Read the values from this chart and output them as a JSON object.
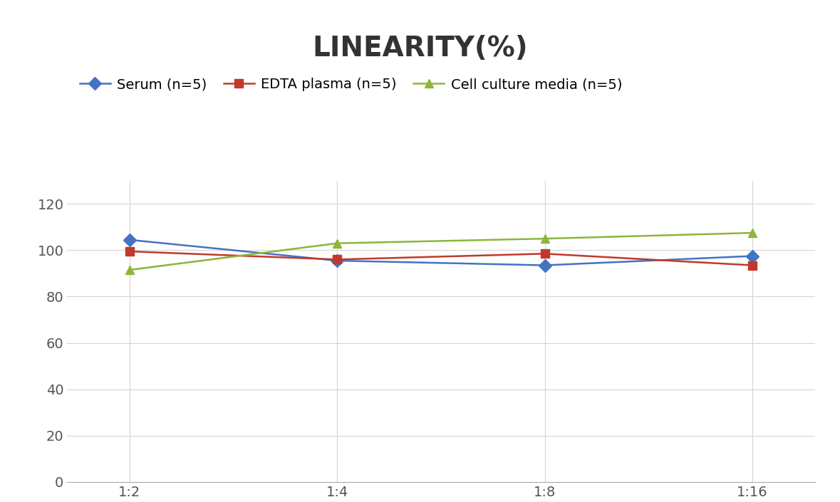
{
  "title": "LINEARITY(%)",
  "x_labels": [
    "1:2",
    "1:4",
    "1:8",
    "1:16"
  ],
  "x_positions": [
    0,
    1,
    2,
    3
  ],
  "series": [
    {
      "name": "Serum (n=5)",
      "values": [
        104.5,
        95.5,
        93.5,
        97.5
      ],
      "color": "#4472C4",
      "marker": "D",
      "marker_color": "#4472C4"
    },
    {
      "name": "EDTA plasma (n=5)",
      "values": [
        99.5,
        96.0,
        98.5,
        93.5
      ],
      "color": "#C0392B",
      "marker": "s",
      "marker_color": "#C0392B"
    },
    {
      "name": "Cell culture media (n=5)",
      "values": [
        91.5,
        103.0,
        105.0,
        107.5
      ],
      "color": "#8DB53B",
      "marker": "^",
      "marker_color": "#8DB53B"
    }
  ],
  "ylim": [
    0,
    130
  ],
  "yticks": [
    0,
    20,
    40,
    60,
    80,
    100,
    120
  ],
  "title_fontsize": 28,
  "legend_fontsize": 14,
  "tick_fontsize": 14,
  "background_color": "#ffffff",
  "grid_color": "#D5D5D5"
}
